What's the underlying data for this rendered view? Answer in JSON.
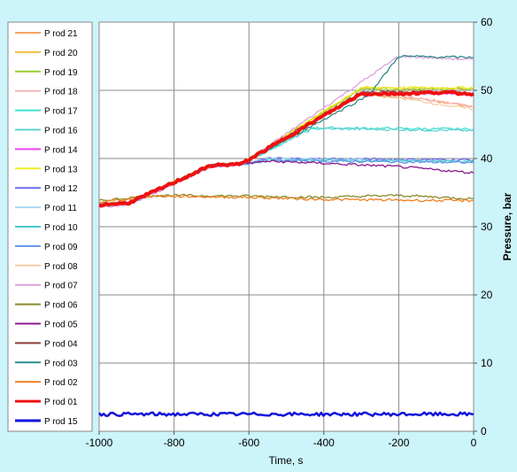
{
  "chart_data": {
    "type": "line",
    "xlabel": "Time, s",
    "ylabel": "Pressure, bar",
    "xlim": [
      -1000,
      0
    ],
    "ylim": [
      0,
      60
    ],
    "x_ticks": [
      -1000,
      -800,
      -600,
      -400,
      -200,
      0
    ],
    "y_ticks": [
      0,
      10,
      20,
      30,
      40,
      50,
      60
    ],
    "y_axis_side": "right",
    "grid": true,
    "legend_placement": "left",
    "background_color": "#CCF4FB",
    "plot_background_color": "#ffffff",
    "series": [
      {
        "name": "P  rod 21",
        "color": "#F4A460",
        "x": [
          -1000,
          -920,
          -880,
          -700,
          -620,
          -300,
          -290,
          -200,
          -100,
          0
        ],
        "y": [
          33.2,
          33.5,
          34.5,
          39,
          39.2,
          49.5,
          49.5,
          49,
          48.5,
          47.5
        ]
      },
      {
        "name": "P  rod 20",
        "color": "#F0C040",
        "x": [
          -1000,
          -920,
          -880,
          -700,
          -620,
          -300,
          0
        ],
        "y": [
          33.2,
          33.5,
          34.5,
          39,
          39.2,
          50.3,
          50.3
        ]
      },
      {
        "name": "P  rod 19",
        "color": "#9ACD32",
        "x": [
          -1000,
          -920,
          -880,
          -700,
          -620,
          -300,
          0
        ],
        "y": [
          33.3,
          33.6,
          34.6,
          39.1,
          39.3,
          50.2,
          50.2
        ]
      },
      {
        "name": "P  rod 18",
        "color": "#F7B6B6",
        "x": [
          -1000,
          -920,
          -880,
          -700,
          -620,
          -300,
          -200,
          -100,
          0
        ],
        "y": [
          33.1,
          33.5,
          34.5,
          39,
          39.2,
          49.6,
          49.3,
          48.4,
          47.6
        ]
      },
      {
        "name": "P  rod 17",
        "color": "#40E0D0",
        "x": [
          -1000,
          -920,
          -880,
          -700,
          -620,
          -430,
          0
        ],
        "y": [
          33.2,
          33.5,
          34.5,
          39,
          39.2,
          44.5,
          44.3
        ]
      },
      {
        "name": "P  rod 16",
        "color": "#5FD3D3",
        "x": [
          -1000,
          -920,
          -880,
          -700,
          -620,
          -430,
          0
        ],
        "y": [
          33.2,
          33.5,
          34.5,
          39,
          39.2,
          44.4,
          44.1
        ]
      },
      {
        "name": "P  rod 14",
        "color": "#EE44EE",
        "x": [
          -1000,
          -920,
          -880,
          -700,
          -620,
          -300,
          0
        ],
        "y": [
          33.0,
          33.4,
          34.3,
          38.8,
          39.1,
          49.5,
          49.6
        ]
      },
      {
        "name": "P  rod 13",
        "color": "#EEEE22",
        "x": [
          -1000,
          -920,
          -880,
          -700,
          -620,
          -300,
          0
        ],
        "y": [
          33.3,
          33.6,
          34.6,
          39.1,
          39.3,
          50.4,
          50.4
        ]
      },
      {
        "name": "P  rod 12",
        "color": "#6A6AEE",
        "x": [
          -1000,
          -920,
          -880,
          -700,
          -620,
          -550,
          0
        ],
        "y": [
          33.2,
          33.5,
          34.5,
          39,
          39.3,
          40,
          39.8
        ]
      },
      {
        "name": "P  rod 11",
        "color": "#A8D8F0",
        "x": [
          -1000,
          -920,
          -880,
          -700,
          -620,
          -550,
          0
        ],
        "y": [
          33.2,
          33.5,
          34.5,
          39,
          39.2,
          40,
          39.5
        ]
      },
      {
        "name": "P  rod 10",
        "color": "#48C8C8",
        "x": [
          -1000,
          -920,
          -880,
          -700,
          -620,
          -550,
          0
        ],
        "y": [
          33.2,
          33.5,
          34.5,
          39,
          39.2,
          39.8,
          39.6
        ]
      },
      {
        "name": "P  rod 09",
        "color": "#6495ED",
        "x": [
          -1000,
          -920,
          -880,
          -700,
          -620,
          -550,
          0
        ],
        "y": [
          33.1,
          33.5,
          34.5,
          39,
          39.2,
          39.7,
          39.4
        ]
      },
      {
        "name": "P  rod 08",
        "color": "#F5CBA7",
        "x": [
          -1000,
          -920,
          -880,
          -700,
          -620,
          -300,
          -200,
          0
        ],
        "y": [
          33.1,
          33.4,
          34.4,
          38.9,
          39.1,
          49.4,
          48.9,
          47.2
        ]
      },
      {
        "name": "P  rod 07",
        "color": "#DDA0DD",
        "x": [
          -1000,
          -920,
          -880,
          -700,
          -620,
          -200,
          0
        ],
        "y": [
          32.8,
          33.3,
          34.2,
          38.8,
          39.1,
          55,
          54.5
        ]
      },
      {
        "name": "P  rod 06",
        "color": "#8B8B2A",
        "x": [
          -1000,
          -850,
          -600,
          -400,
          -200,
          0
        ],
        "y": [
          33.8,
          34.6,
          34.5,
          34.3,
          34.6,
          34.1
        ]
      },
      {
        "name": "P  rod 05",
        "color": "#8B1A8B",
        "x": [
          -1000,
          -920,
          -880,
          -700,
          -620,
          -550,
          -400,
          -200,
          0
        ],
        "y": [
          33.2,
          33.5,
          34.5,
          39,
          39.2,
          39.6,
          39.3,
          38.8,
          37.9
        ]
      },
      {
        "name": "P  rod 04",
        "color": "#8B3A3A",
        "x": [
          -1000,
          -920,
          -880,
          -700,
          -620,
          -300,
          0
        ],
        "y": [
          33.2,
          33.5,
          34.5,
          39,
          39.2,
          49.8,
          49.6
        ]
      },
      {
        "name": "P  rod 03",
        "color": "#2E8B8B",
        "x": [
          -1000,
          -920,
          -880,
          -700,
          -620,
          -280,
          -200,
          0
        ],
        "y": [
          33.2,
          33.5,
          34.5,
          39,
          39.2,
          49.3,
          55,
          54.8
        ]
      },
      {
        "name": "P  rod 02",
        "color": "#F07F20",
        "x": [
          -1000,
          -850,
          -600,
          -400,
          -200,
          0
        ],
        "y": [
          33.6,
          34.5,
          34.3,
          34.0,
          33.9,
          33.8
        ]
      },
      {
        "name": "P  rod 01",
        "color": "#EE1111",
        "x": [
          -1000,
          -920,
          -880,
          -700,
          -620,
          -300,
          -200,
          -100,
          0
        ],
        "y": [
          33.2,
          33.5,
          34.5,
          39,
          39.2,
          49.5,
          49.5,
          49.7,
          49.5
        ]
      },
      {
        "name": "P  rod 15",
        "color": "#1111DD",
        "x": [
          -1000,
          0
        ],
        "y": [
          2.5,
          2.5
        ]
      }
    ]
  }
}
